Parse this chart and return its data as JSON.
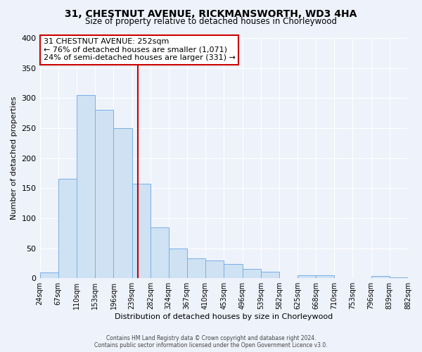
{
  "title1": "31, CHESTNUT AVENUE, RICKMANSWORTH, WD3 4HA",
  "title2": "Size of property relative to detached houses in Chorleywood",
  "xlabel": "Distribution of detached houses by size in Chorleywood",
  "ylabel": "Number of detached properties",
  "bin_edges": [
    24,
    67,
    110,
    153,
    196,
    239,
    282,
    324,
    367,
    410,
    453,
    496,
    539,
    582,
    625,
    668,
    710,
    753,
    796,
    839,
    882
  ],
  "counts": [
    10,
    165,
    305,
    280,
    250,
    157,
    85,
    50,
    33,
    29,
    24,
    15,
    11,
    0,
    5,
    5,
    0,
    0,
    4,
    2
  ],
  "bar_color": "#cfe2f3",
  "bar_edge_color": "#7aafe6",
  "property_size": 252,
  "vline_color": "#cc0000",
  "annotation_title": "31 CHESTNUT AVENUE: 252sqm",
  "annotation_line1": "← 76% of detached houses are smaller (1,071)",
  "annotation_line2": "24% of semi-detached houses are larger (331) →",
  "annotation_box_color": "#ffffff",
  "annotation_box_edge": "#cc0000",
  "ylim": [
    0,
    400
  ],
  "yticks": [
    0,
    50,
    100,
    150,
    200,
    250,
    300,
    350,
    400
  ],
  "footer1": "Contains HM Land Registry data © Crown copyright and database right 2024.",
  "footer2": "Contains public sector information licensed under the Open Government Licence v3.0.",
  "background_color": "#eef2fb"
}
